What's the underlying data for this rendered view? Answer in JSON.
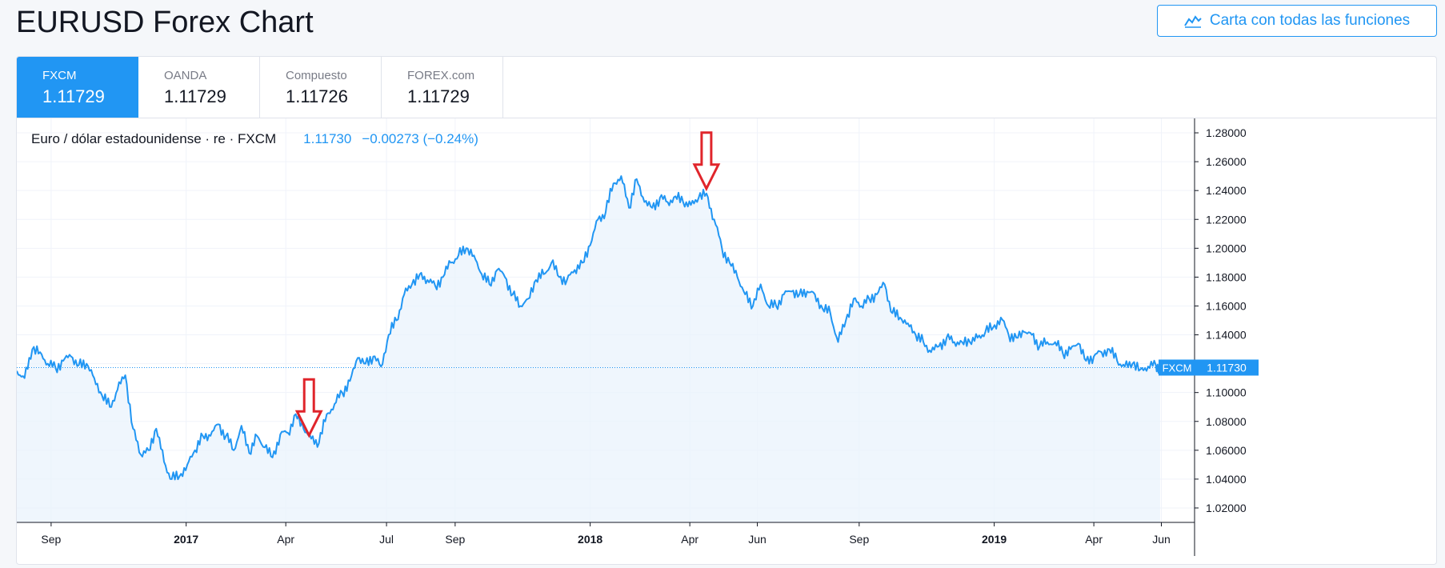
{
  "page": {
    "title": "EURUSD Forex Chart",
    "full_chart_button": "Carta con todas las funciones"
  },
  "tabs": [
    {
      "name": "FXCM",
      "price": "1.11729",
      "active": true
    },
    {
      "name": "OANDA",
      "price": "1.11729",
      "active": false
    },
    {
      "name": "Compuesto",
      "price": "1.11726",
      "active": false
    },
    {
      "name": "FOREX.com",
      "price": "1.11729",
      "active": false
    }
  ],
  "legend": {
    "symbol": "Euro / dólar estadounidense · re · FXCM",
    "last": "1.11730",
    "change": "−0.00273 (−0.24%)"
  },
  "colors": {
    "accent": "#2196f3",
    "line": "#2196f3",
    "area_fill": "#eaf3fc",
    "text": "#131722",
    "muted": "#787b86",
    "arrow": "#e0252b"
  },
  "chart_data": {
    "type": "area",
    "ylim": [
      1.01,
      1.29
    ],
    "y_ticks": [
      "1.28000",
      "1.26000",
      "1.24000",
      "1.22000",
      "1.20000",
      "1.18000",
      "1.16000",
      "1.14000",
      "1.12000",
      "1.10000",
      "1.08000",
      "1.06000",
      "1.04000",
      "1.02000"
    ],
    "x_ticks": [
      "Sep",
      "2017",
      "Apr",
      "Jul",
      "Sep",
      "2018",
      "Apr",
      "Jun",
      "Sep",
      "2019",
      "Apr",
      "Jun"
    ],
    "x_tick_dates": [
      "2016-09-01",
      "2017-01-01",
      "2017-04-01",
      "2017-07-01",
      "2017-09-01",
      "2018-01-01",
      "2018-04-01",
      "2018-06-01",
      "2018-09-01",
      "2019-01-01",
      "2019-04-01",
      "2019-06-01"
    ],
    "x_range": [
      "2016-08-01",
      "2019-07-01"
    ],
    "grid": true,
    "series": [
      {
        "points": [
          [
            "2016-08-01",
            1.115
          ],
          [
            "2016-08-08",
            1.11
          ],
          [
            "2016-08-15",
            1.13
          ],
          [
            "2016-08-22",
            1.128
          ],
          [
            "2016-08-29",
            1.12
          ],
          [
            "2016-09-05",
            1.117
          ],
          [
            "2016-09-12",
            1.122
          ],
          [
            "2016-09-19",
            1.125
          ],
          [
            "2016-09-26",
            1.119
          ],
          [
            "2016-10-03",
            1.12
          ],
          [
            "2016-10-10",
            1.11
          ],
          [
            "2016-10-17",
            1.098
          ],
          [
            "2016-10-24",
            1.09
          ],
          [
            "2016-10-31",
            1.102
          ],
          [
            "2016-11-07",
            1.112
          ],
          [
            "2016-11-14",
            1.075
          ],
          [
            "2016-11-21",
            1.057
          ],
          [
            "2016-11-28",
            1.06
          ],
          [
            "2016-12-05",
            1.075
          ],
          [
            "2016-12-12",
            1.052
          ],
          [
            "2016-12-19",
            1.04
          ],
          [
            "2016-12-26",
            1.042
          ],
          [
            "2017-01-02",
            1.05
          ],
          [
            "2017-01-09",
            1.06
          ],
          [
            "2017-01-16",
            1.07
          ],
          [
            "2017-01-23",
            1.07
          ],
          [
            "2017-01-30",
            1.078
          ],
          [
            "2017-02-06",
            1.07
          ],
          [
            "2017-02-13",
            1.06
          ],
          [
            "2017-02-20",
            1.077
          ],
          [
            "2017-02-27",
            1.058
          ],
          [
            "2017-03-06",
            1.07
          ],
          [
            "2017-03-13",
            1.062
          ],
          [
            "2017-03-20",
            1.055
          ],
          [
            "2017-03-27",
            1.071
          ],
          [
            "2017-04-03",
            1.072
          ],
          [
            "2017-04-10",
            1.085
          ],
          [
            "2017-04-17",
            1.075
          ],
          [
            "2017-04-24",
            1.068
          ],
          [
            "2017-05-01",
            1.065
          ],
          [
            "2017-05-08",
            1.085
          ],
          [
            "2017-05-15",
            1.092
          ],
          [
            "2017-05-22",
            1.1
          ],
          [
            "2017-05-29",
            1.108
          ],
          [
            "2017-06-05",
            1.124
          ],
          [
            "2017-06-12",
            1.12
          ],
          [
            "2017-06-19",
            1.125
          ],
          [
            "2017-06-26",
            1.118
          ],
          [
            "2017-07-03",
            1.14
          ],
          [
            "2017-07-10",
            1.15
          ],
          [
            "2017-07-17",
            1.168
          ],
          [
            "2017-07-24",
            1.175
          ],
          [
            "2017-07-31",
            1.182
          ],
          [
            "2017-08-07",
            1.178
          ],
          [
            "2017-08-14",
            1.174
          ],
          [
            "2017-08-21",
            1.18
          ],
          [
            "2017-08-28",
            1.19
          ],
          [
            "2017-09-04",
            1.195
          ],
          [
            "2017-09-11",
            1.2
          ],
          [
            "2017-09-18",
            1.195
          ],
          [
            "2017-09-25",
            1.182
          ],
          [
            "2017-10-02",
            1.175
          ],
          [
            "2017-10-09",
            1.185
          ],
          [
            "2017-10-16",
            1.18
          ],
          [
            "2017-10-23",
            1.168
          ],
          [
            "2017-10-30",
            1.16
          ],
          [
            "2017-11-06",
            1.165
          ],
          [
            "2017-11-13",
            1.178
          ],
          [
            "2017-11-20",
            1.182
          ],
          [
            "2017-11-27",
            1.19
          ],
          [
            "2017-12-04",
            1.18
          ],
          [
            "2017-12-11",
            1.178
          ],
          [
            "2017-12-18",
            1.185
          ],
          [
            "2017-12-25",
            1.19
          ],
          [
            "2018-01-01",
            1.202
          ],
          [
            "2018-01-08",
            1.22
          ],
          [
            "2018-01-15",
            1.225
          ],
          [
            "2018-01-22",
            1.245
          ],
          [
            "2018-01-29",
            1.25
          ],
          [
            "2018-02-05",
            1.228
          ],
          [
            "2018-02-12",
            1.248
          ],
          [
            "2018-02-19",
            1.232
          ],
          [
            "2018-02-26",
            1.228
          ],
          [
            "2018-03-05",
            1.235
          ],
          [
            "2018-03-12",
            1.232
          ],
          [
            "2018-03-19",
            1.236
          ],
          [
            "2018-03-26",
            1.232
          ],
          [
            "2018-04-02",
            1.23
          ],
          [
            "2018-04-09",
            1.235
          ],
          [
            "2018-04-16",
            1.238
          ],
          [
            "2018-04-23",
            1.22
          ],
          [
            "2018-04-30",
            1.2
          ],
          [
            "2018-05-07",
            1.19
          ],
          [
            "2018-05-14",
            1.18
          ],
          [
            "2018-05-21",
            1.168
          ],
          [
            "2018-05-28",
            1.16
          ],
          [
            "2018-06-04",
            1.175
          ],
          [
            "2018-06-11",
            1.16
          ],
          [
            "2018-06-18",
            1.16
          ],
          [
            "2018-06-25",
            1.168
          ],
          [
            "2018-07-02",
            1.17
          ],
          [
            "2018-07-09",
            1.168
          ],
          [
            "2018-07-16",
            1.17
          ],
          [
            "2018-07-23",
            1.168
          ],
          [
            "2018-07-30",
            1.158
          ],
          [
            "2018-08-06",
            1.155
          ],
          [
            "2018-08-13",
            1.135
          ],
          [
            "2018-08-20",
            1.15
          ],
          [
            "2018-08-27",
            1.165
          ],
          [
            "2018-09-03",
            1.16
          ],
          [
            "2018-09-10",
            1.165
          ],
          [
            "2018-09-17",
            1.168
          ],
          [
            "2018-09-24",
            1.175
          ],
          [
            "2018-10-01",
            1.155
          ],
          [
            "2018-10-08",
            1.152
          ],
          [
            "2018-10-15",
            1.148
          ],
          [
            "2018-10-22",
            1.14
          ],
          [
            "2018-10-29",
            1.135
          ],
          [
            "2018-11-05",
            1.128
          ],
          [
            "2018-11-12",
            1.132
          ],
          [
            "2018-11-19",
            1.138
          ],
          [
            "2018-11-26",
            1.135
          ],
          [
            "2018-12-03",
            1.135
          ],
          [
            "2018-12-10",
            1.135
          ],
          [
            "2018-12-17",
            1.138
          ],
          [
            "2018-12-24",
            1.142
          ],
          [
            "2018-12-31",
            1.145
          ],
          [
            "2019-01-07",
            1.152
          ],
          [
            "2019-01-14",
            1.14
          ],
          [
            "2019-01-21",
            1.138
          ],
          [
            "2019-01-28",
            1.142
          ],
          [
            "2019-02-04",
            1.14
          ],
          [
            "2019-02-11",
            1.132
          ],
          [
            "2019-02-18",
            1.135
          ],
          [
            "2019-02-25",
            1.135
          ],
          [
            "2019-03-04",
            1.127
          ],
          [
            "2019-03-11",
            1.13
          ],
          [
            "2019-03-18",
            1.134
          ],
          [
            "2019-03-25",
            1.122
          ],
          [
            "2019-04-01",
            1.125
          ],
          [
            "2019-04-08",
            1.128
          ],
          [
            "2019-04-15",
            1.13
          ],
          [
            "2019-04-22",
            1.122
          ],
          [
            "2019-04-29",
            1.118
          ],
          [
            "2019-05-06",
            1.12
          ],
          [
            "2019-05-13",
            1.116
          ],
          [
            "2019-05-20",
            1.118
          ],
          [
            "2019-05-27",
            1.119
          ],
          [
            "2019-05-31",
            1.1173
          ]
        ]
      }
    ],
    "last_value_label": {
      "name": "FXCM",
      "value": "1.11730",
      "value_num": 1.1173
    },
    "annotations": [
      {
        "type": "down-arrow",
        "date": "2017-04-22",
        "value": 1.067
      },
      {
        "type": "down-arrow",
        "date": "2018-04-16",
        "value": 1.238
      }
    ]
  }
}
